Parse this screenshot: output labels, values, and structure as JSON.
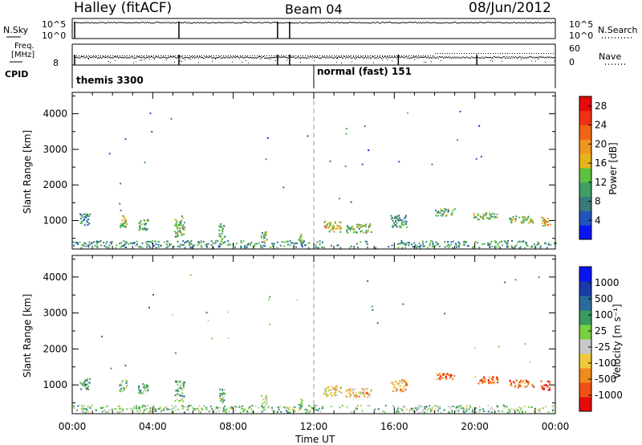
{
  "header": {
    "station": "Halley (fitACF)",
    "beam": "Beam 04",
    "date": "08/Jun/2012"
  },
  "params": {
    "nsky_label": "N.Sky",
    "nsky_top": "10^5",
    "nsky_bottom": "10^0",
    "nsearch_label": "N.Search",
    "nsearch_top": "10^5",
    "nsearch_bottom": "10^0",
    "freq_label": "Freq.",
    "freq_unit": "[MHz]",
    "freq_value": "8",
    "nave_label": "Nave",
    "nave_top": "60",
    "nave_bottom": "0",
    "cpid_label": "CPID",
    "cpid_modes": [
      "themis 3300",
      "normal (fast) 151"
    ]
  },
  "colors": {
    "power": [
      "#0a14f0",
      "#2255bb",
      "#3a7a7a",
      "#3f9f65",
      "#5cc040",
      "#e6b41e",
      "#f0961e",
      "#f06414",
      "#f03214",
      "#e60a0a"
    ],
    "velocity": [
      "#e60a0a",
      "#f05014",
      "#f08c1e",
      "#f0c83c",
      "#c8c8c8",
      "#78d040",
      "#3a9a60",
      "#2a6a9a",
      "#1a3aa8",
      "#0a14f0"
    ]
  },
  "chart_data": [
    {
      "type": "heatmap",
      "panel": "power",
      "ylabel": "Slant Range [km]",
      "yticks": [
        "1000",
        "2000",
        "3000",
        "4000"
      ],
      "ylim": [
        200,
        4600
      ],
      "xlim": [
        0,
        24
      ],
      "colorbar_label": "Power [dB]",
      "colorbar_ticks": [
        "4",
        "8",
        "12",
        "16",
        "20",
        "24",
        "28"
      ],
      "colorbar_range": [
        0,
        30
      ],
      "grid": false,
      "blobs": [
        {
          "t": 0.6,
          "r": 1050,
          "dt": 0.5,
          "dr": 350,
          "level": 0.3
        },
        {
          "t": 2.5,
          "r": 1000,
          "dt": 0.4,
          "dr": 350,
          "level": 0.45
        },
        {
          "t": 3.5,
          "r": 900,
          "dt": 0.5,
          "dr": 300,
          "level": 0.35
        },
        {
          "t": 5.3,
          "r": 850,
          "dt": 0.5,
          "dr": 600,
          "level": 0.4
        },
        {
          "t": 7.4,
          "r": 700,
          "dt": 0.3,
          "dr": 450,
          "level": 0.4
        },
        {
          "t": 9.5,
          "r": 550,
          "dt": 0.3,
          "dr": 350,
          "level": 0.35
        },
        {
          "t": 11.3,
          "r": 500,
          "dt": 0.2,
          "dr": 300,
          "level": 0.45
        },
        {
          "t": 12.9,
          "r": 850,
          "dt": 0.9,
          "dr": 300,
          "level": 0.55
        },
        {
          "t": 14.2,
          "r": 800,
          "dt": 1.3,
          "dr": 250,
          "level": 0.4
        },
        {
          "t": 16.2,
          "r": 1000,
          "dt": 0.8,
          "dr": 350,
          "level": 0.3
        },
        {
          "t": 18.5,
          "r": 1250,
          "dt": 1.0,
          "dr": 200,
          "level": 0.35
        },
        {
          "t": 20.5,
          "r": 1150,
          "dt": 1.2,
          "dr": 200,
          "level": 0.4
        },
        {
          "t": 22.3,
          "r": 1050,
          "dt": 1.2,
          "dr": 200,
          "level": 0.45
        },
        {
          "t": 23.5,
          "r": 1000,
          "dt": 0.5,
          "dr": 250,
          "level": 0.6
        }
      ]
    },
    {
      "type": "heatmap",
      "panel": "velocity",
      "ylabel": "Slant Range [km]",
      "yticks": [
        "1000",
        "2000",
        "3000",
        "4000"
      ],
      "ylim": [
        200,
        4600
      ],
      "xlabel": "Time UT",
      "xticks": [
        "00:00",
        "04:00",
        "08:00",
        "12:00",
        "16:00",
        "20:00",
        "00:00"
      ],
      "xlim": [
        0,
        24
      ],
      "colorbar_label": "Velocity [m s⁻¹]",
      "colorbar_ticks": [
        "1000",
        "500",
        "100",
        "25",
        "-25",
        "-100",
        "-500",
        "-1000"
      ],
      "grid": false,
      "blobs": [
        {
          "t": 0.6,
          "r": 1050,
          "dt": 0.5,
          "dr": 350,
          "level": 0.65
        },
        {
          "t": 2.5,
          "r": 1000,
          "dt": 0.4,
          "dr": 350,
          "level": 0.55
        },
        {
          "t": 3.5,
          "r": 900,
          "dt": 0.5,
          "dr": 300,
          "level": 0.6
        },
        {
          "t": 5.3,
          "r": 850,
          "dt": 0.5,
          "dr": 600,
          "level": 0.6
        },
        {
          "t": 7.4,
          "r": 700,
          "dt": 0.3,
          "dr": 450,
          "level": 0.55
        },
        {
          "t": 9.5,
          "r": 550,
          "dt": 0.3,
          "dr": 350,
          "level": 0.45
        },
        {
          "t": 11.3,
          "r": 500,
          "dt": 0.2,
          "dr": 300,
          "level": 0.55
        },
        {
          "t": 12.9,
          "r": 850,
          "dt": 0.9,
          "dr": 300,
          "level": 0.4
        },
        {
          "t": 14.2,
          "r": 800,
          "dt": 1.3,
          "dr": 250,
          "level": 0.35
        },
        {
          "t": 16.2,
          "r": 1000,
          "dt": 0.8,
          "dr": 350,
          "level": 0.3
        },
        {
          "t": 18.5,
          "r": 1250,
          "dt": 1.0,
          "dr": 200,
          "level": 0.25
        },
        {
          "t": 20.5,
          "r": 1150,
          "dt": 1.2,
          "dr": 200,
          "level": 0.2
        },
        {
          "t": 22.3,
          "r": 1050,
          "dt": 1.2,
          "dr": 200,
          "level": 0.2
        },
        {
          "t": 23.5,
          "r": 1000,
          "dt": 0.5,
          "dr": 250,
          "level": 0.1
        }
      ]
    }
  ]
}
